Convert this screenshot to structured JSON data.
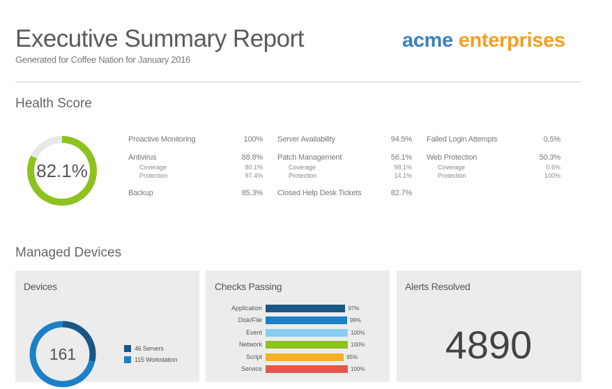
{
  "header": {
    "title": "Executive Summary Report",
    "subtitle": "Generated for Coffee Nation for January 2016",
    "logo_word1": "acme",
    "logo_word2": "enterprises",
    "logo_color1": "#3f7fb8",
    "logo_color2": "#f0a023"
  },
  "health": {
    "section_title": "Health Score",
    "score": "82.1%",
    "score_value": 82.1,
    "gauge_color": "#8ec21f",
    "col1": {
      "r1_label": "Proactive Monitoring",
      "r1_value": "100%",
      "r2_label": "Antivirus",
      "r2_value": "88.8%",
      "r2_sub1_label": "Coverage",
      "r2_sub1_value": "80.1%",
      "r2_sub2_label": "Protection",
      "r2_sub2_value": "97.4%",
      "r3_label": "Backup",
      "r3_value": "85.3%"
    },
    "col2": {
      "r1_label": "Server Availability",
      "r1_value": "94.5%",
      "r2_label": "Patch Management",
      "r2_value": "56.1%",
      "r2_sub1_label": "Coverage",
      "r2_sub1_value": "98.1%",
      "r2_sub2_label": "Protection",
      "r2_sub2_value": "14.1%",
      "r3_label": "Closed Help Desk Tickets",
      "r3_value": "82.7%"
    },
    "col3": {
      "r1_label": "Failed Login Attempts",
      "r1_value": "0.5%",
      "r2_label": "Web Protection",
      "r2_value": "50.3%",
      "r2_sub1_label": "Coverage",
      "r2_sub1_value": "0.6%",
      "r2_sub2_label": "Protection",
      "r2_sub2_value": "100%"
    }
  },
  "devices_section": {
    "section_title": "Managed Devices",
    "devices_card": {
      "title": "Devices",
      "total": "161",
      "legend1": "46 Servers",
      "legend2": "115 Workstation",
      "servers": 46,
      "workstations": 115,
      "color_servers": "#1a5684",
      "color_workstations": "#1b80c8"
    },
    "checks_card": {
      "title": "Checks Passing",
      "rows": [
        {
          "label": "Application",
          "pct": "97%",
          "value": 97,
          "color": "#1a5684"
        },
        {
          "label": "Disk/File",
          "pct": "99%",
          "value": 99,
          "color": "#1b80c8"
        },
        {
          "label": "Event",
          "pct": "100%",
          "value": 100,
          "color": "#86cff2"
        },
        {
          "label": "Network",
          "pct": "100%",
          "value": 100,
          "color": "#8ec21f"
        },
        {
          "label": "Script",
          "pct": "95%",
          "value": 95,
          "color": "#f5b026"
        },
        {
          "label": "Service",
          "pct": "100%",
          "value": 100,
          "color": "#e5574b"
        }
      ]
    },
    "alerts_card": {
      "title": "Alerts Resolved",
      "count": "4890"
    }
  }
}
